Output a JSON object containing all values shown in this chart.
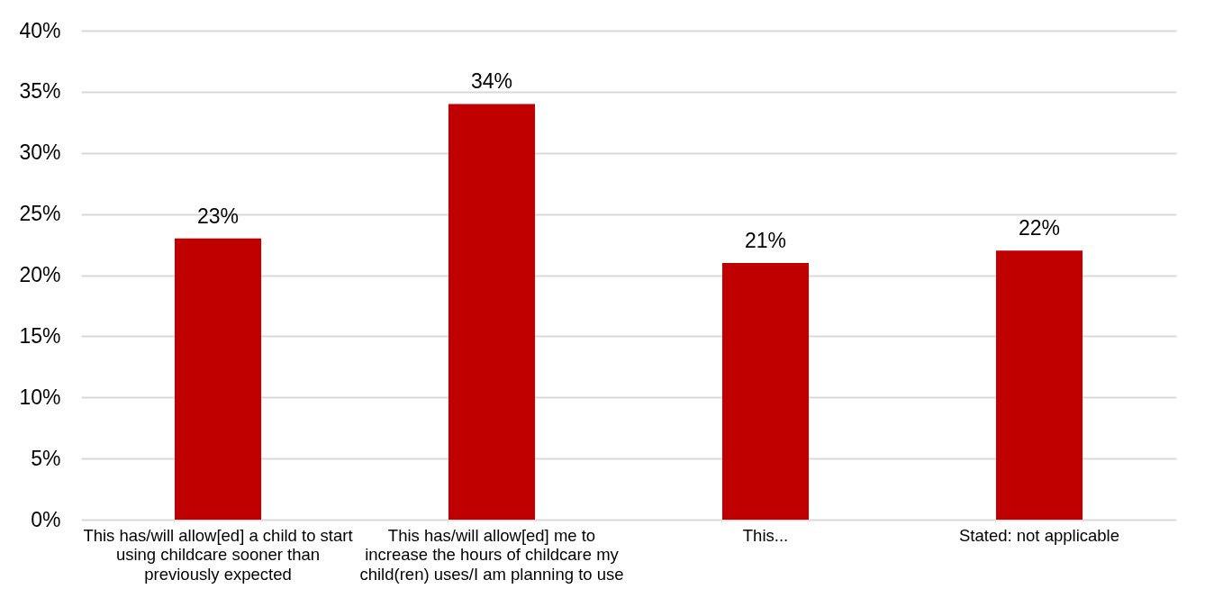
{
  "chart_data": {
    "type": "bar",
    "categories": [
      "This has/will allow[ed] a child to start using childcare sooner than previously expected",
      "This has/will allow[ed] me to increase the hours of childcare my child(ren) uses/I am planning to use",
      "This...",
      "Stated: not applicable"
    ],
    "values": [
      23,
      34,
      21,
      22
    ],
    "color": "#c00000",
    "value_labels": [
      "23%",
      "34%",
      "21%",
      "22%"
    ],
    "ylim": [
      0,
      40
    ],
    "yticks": [
      {
        "value": 0,
        "label": "0%"
      },
      {
        "value": 5,
        "label": "5%"
      },
      {
        "value": 10,
        "label": "10%"
      },
      {
        "value": 15,
        "label": "15%"
      },
      {
        "value": 20,
        "label": "20%"
      },
      {
        "value": 25,
        "label": "25%"
      },
      {
        "value": 30,
        "label": "30%"
      },
      {
        "value": 35,
        "label": "35%"
      },
      {
        "value": 40,
        "label": "40%"
      }
    ],
    "grid": "y"
  }
}
